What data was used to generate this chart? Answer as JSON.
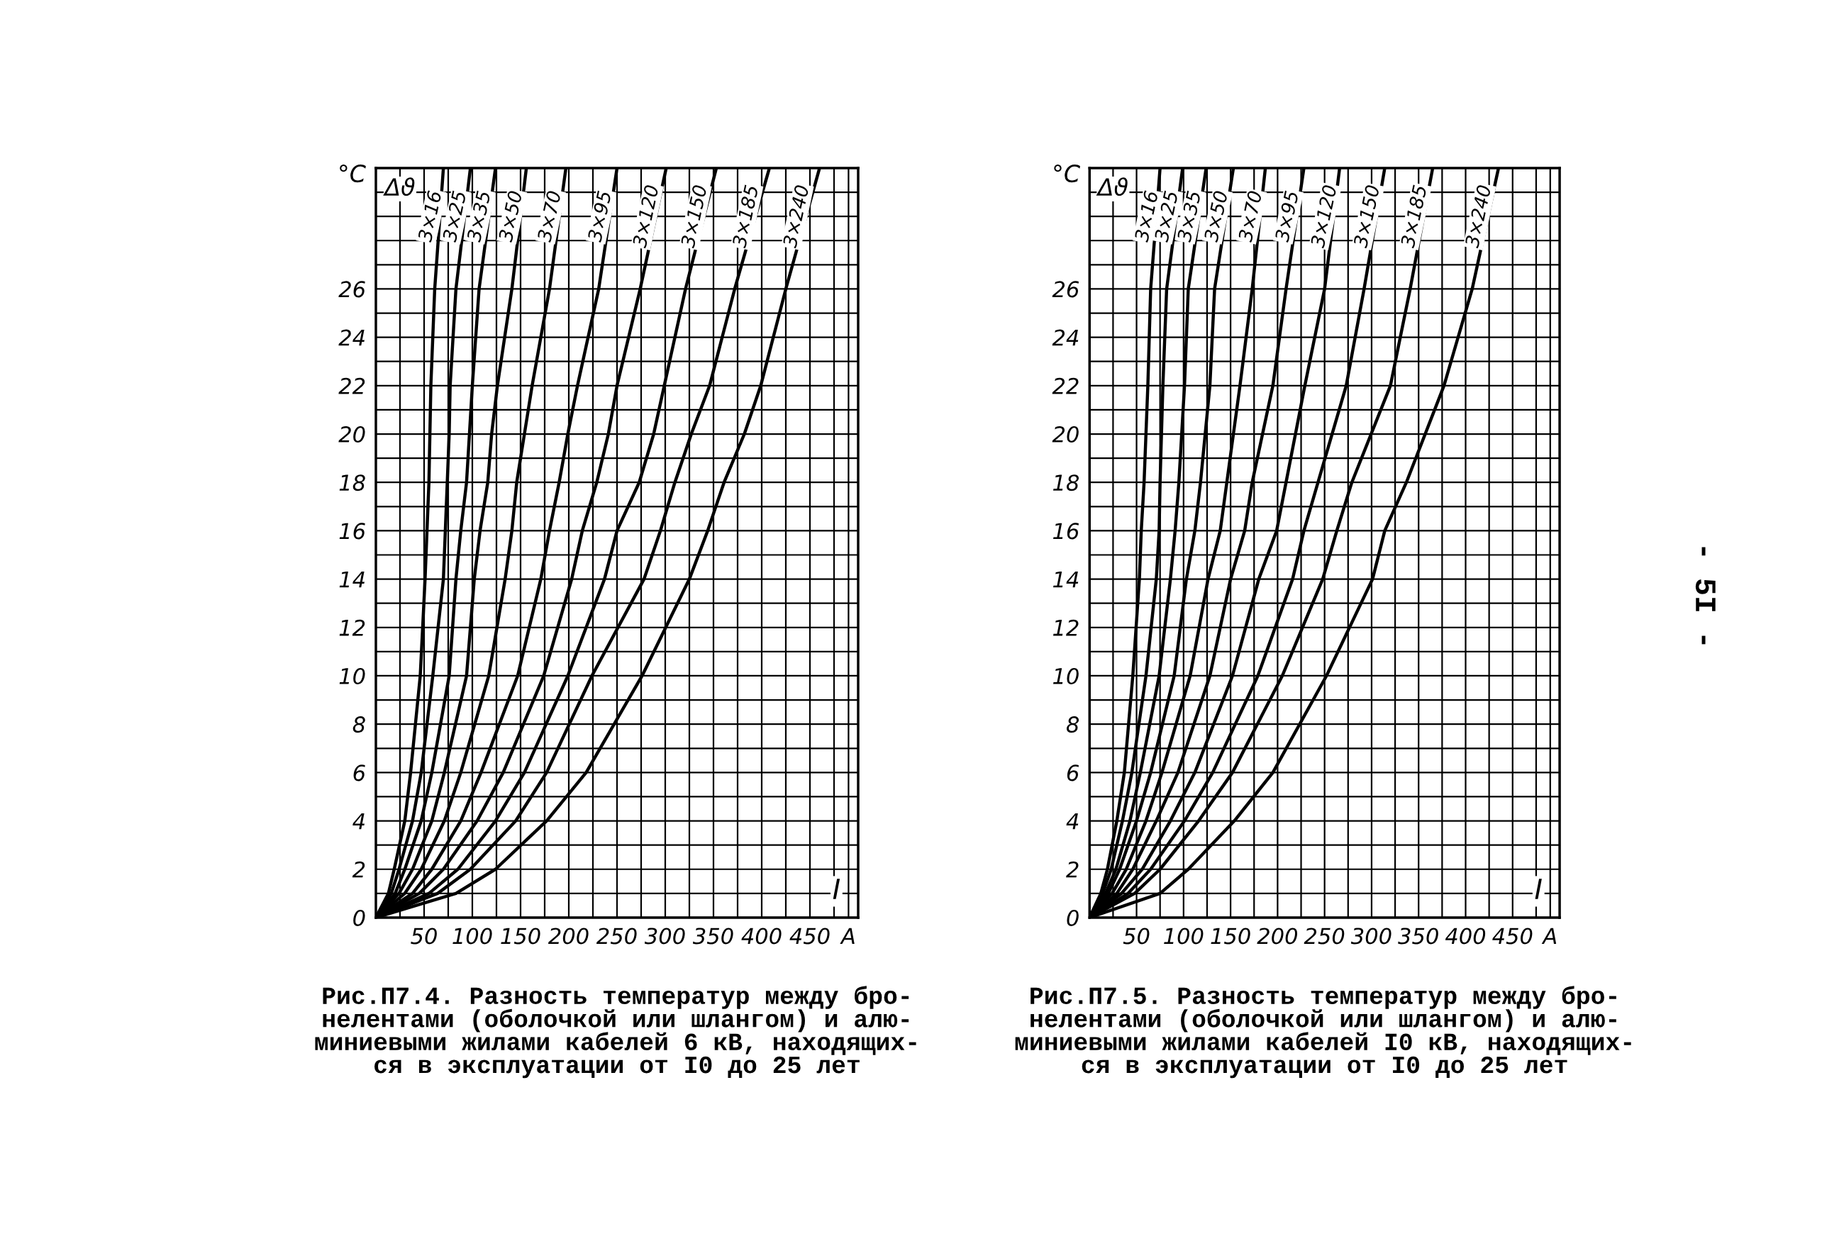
{
  "chart_data": [
    {
      "type": "line",
      "title": "Рис.П7.4. Разность температур между бро-\nнелентами (оболочкой или шлангом) и алю-\nминиевыми жилами кабелей 6 кВ, находящих-\nся в эксплуатации от I0 до 25 лет",
      "xlabel": "I",
      "ylabel": "°C",
      "annotations": [
        "Δϑ"
      ],
      "xlim": [
        0,
        500
      ],
      "ylim": [
        0,
        31
      ],
      "xticks": [
        {
          "value": 25,
          "label": null
        },
        50,
        {
          "value": 75,
          "label": null
        },
        100,
        {
          "value": 125,
          "label": null
        },
        150,
        {
          "value": 175,
          "label": null
        },
        200,
        {
          "value": 225,
          "label": null
        },
        250,
        {
          "value": 275,
          "label": null
        },
        300,
        {
          "value": 325,
          "label": null
        },
        350,
        {
          "value": 375,
          "label": null
        },
        400,
        {
          "value": 425,
          "label": null
        },
        450,
        {
          "value": 475,
          "label": null
        },
        {
          "value": 490,
          "label": "A"
        }
      ],
      "yticks": [
        0,
        {
          "value": 1,
          "label": null
        },
        2,
        {
          "value": 3,
          "label": null
        },
        4,
        {
          "value": 5,
          "label": null
        },
        6,
        {
          "value": 7,
          "label": null
        },
        8,
        {
          "value": 9,
          "label": null
        },
        10,
        {
          "value": 11,
          "label": null
        },
        12,
        {
          "value": 13,
          "label": null
        },
        14,
        {
          "value": 15,
          "label": null
        },
        16,
        {
          "value": 17,
          "label": null
        },
        18,
        {
          "value": 19,
          "label": null
        },
        20,
        {
          "value": 21,
          "label": null
        },
        22,
        {
          "value": 23,
          "label": null
        },
        24,
        {
          "value": 25,
          "label": null
        },
        26,
        {
          "value": 27,
          "label": null
        },
        {
          "value": 28,
          "label": null
        },
        {
          "value": 29,
          "label": null
        },
        {
          "value": 30,
          "label": null
        }
      ],
      "grid": true,
      "series": [
        {
          "name": "3×16",
          "color": "#000000",
          "x": [
            0,
            13,
            19,
            30,
            36,
            46,
            51,
            53,
            55,
            56,
            57,
            61,
            70
          ],
          "values": [
            0,
            1,
            2,
            4,
            6,
            10,
            14,
            16,
            18,
            20,
            22,
            26,
            31
          ]
        },
        {
          "name": "3×25",
          "color": "#000000",
          "x": [
            0,
            16,
            24,
            38,
            47,
            59,
            70,
            72,
            74,
            76,
            77,
            83,
            98
          ],
          "values": [
            0,
            1,
            2,
            4,
            6,
            10,
            14,
            16,
            18,
            20,
            22,
            26,
            31
          ]
        },
        {
          "name": "3×35",
          "color": "#000000",
          "x": [
            0,
            20,
            30,
            47,
            58,
            76,
            83,
            88,
            94,
            97,
            100,
            107,
            124
          ],
          "values": [
            0,
            1,
            2,
            4,
            6,
            10,
            14,
            16,
            18,
            20,
            22,
            26,
            31
          ]
        },
        {
          "name": "3×50",
          "color": "#000000",
          "x": [
            0,
            24,
            38,
            58,
            71,
            94,
            102,
            108,
            116,
            120,
            126,
            141,
            156
          ],
          "values": [
            0,
            1,
            2,
            4,
            6,
            10,
            14,
            16,
            18,
            20,
            22,
            26,
            31
          ]
        },
        {
          "name": "3×70",
          "color": "#000000",
          "x": [
            0,
            30,
            47,
            71,
            88,
            117,
            134,
            141,
            146,
            154,
            162,
            180,
            197
          ],
          "values": [
            0,
            1,
            2,
            4,
            6,
            10,
            14,
            16,
            18,
            20,
            22,
            26,
            31
          ]
        },
        {
          "name": "3×95",
          "color": "#000000",
          "x": [
            0,
            38,
            58,
            88,
            109,
            147,
            171,
            180,
            190,
            199,
            209,
            231,
            250
          ],
          "values": [
            0,
            1,
            2,
            4,
            6,
            10,
            14,
            16,
            18,
            20,
            22,
            26,
            31
          ]
        },
        {
          "name": "3×120",
          "color": "#000000",
          "x": [
            0,
            45,
            70,
            105,
            132,
            174,
            203,
            214,
            229,
            241,
            250,
            274,
            301
          ],
          "values": [
            0,
            1,
            2,
            4,
            6,
            10,
            14,
            16,
            18,
            20,
            22,
            26,
            31
          ]
        },
        {
          "name": "3×150",
          "color": "#000000",
          "x": [
            0,
            55,
            85,
            124,
            154,
            199,
            237,
            250,
            273,
            288,
            299,
            321,
            353
          ],
          "values": [
            0,
            1,
            2,
            4,
            6,
            10,
            14,
            16,
            18,
            20,
            22,
            26,
            31
          ]
        },
        {
          "name": "3×185",
          "color": "#000000",
          "x": [
            0,
            64,
            98,
            145,
            177,
            224,
            278,
            295,
            310,
            327,
            346,
            372,
            408
          ],
          "values": [
            0,
            1,
            2,
            4,
            6,
            10,
            14,
            16,
            18,
            20,
            22,
            26,
            31
          ]
        },
        {
          "name": "3×240",
          "color": "#000000",
          "x": [
            0,
            83,
            124,
            177,
            218,
            276,
            325,
            344,
            361,
            382,
            399,
            425,
            460
          ],
          "values": [
            0,
            1,
            2,
            4,
            6,
            10,
            14,
            16,
            18,
            20,
            22,
            26,
            31
          ]
        }
      ]
    },
    {
      "type": "line",
      "title": "Рис.П7.5. Разность температур между бро-\nнелентами (оболочкой или шлангом) и алю-\nминиевыми жилами кабелей I0 кВ, находящих-\nся в эксплуатации от I0 до 25 лет",
      "xlabel": "I",
      "ylabel": "°C",
      "annotations": [
        "Δϑ",
        "- 5I -"
      ],
      "xlim": [
        0,
        500
      ],
      "ylim": [
        0,
        31
      ],
      "xticks": [
        {
          "value": 25,
          "label": null
        },
        50,
        {
          "value": 75,
          "label": null
        },
        100,
        {
          "value": 125,
          "label": null
        },
        150,
        {
          "value": 175,
          "label": null
        },
        200,
        {
          "value": 225,
          "label": null
        },
        250,
        {
          "value": 275,
          "label": null
        },
        300,
        {
          "value": 325,
          "label": null
        },
        350,
        {
          "value": 375,
          "label": null
        },
        400,
        {
          "value": 425,
          "label": null
        },
        450,
        {
          "value": 475,
          "label": null
        },
        {
          "value": 490,
          "label": "A"
        }
      ],
      "yticks": [
        0,
        {
          "value": 1,
          "label": null
        },
        2,
        {
          "value": 3,
          "label": null
        },
        4,
        {
          "value": 5,
          "label": null
        },
        6,
        {
          "value": 7,
          "label": null
        },
        8,
        {
          "value": 9,
          "label": null
        },
        10,
        {
          "value": 11,
          "label": null
        },
        12,
        {
          "value": 13,
          "label": null
        },
        14,
        {
          "value": 15,
          "label": null
        },
        16,
        {
          "value": 17,
          "label": null
        },
        18,
        {
          "value": 19,
          "label": null
        },
        20,
        {
          "value": 21,
          "label": null
        },
        22,
        {
          "value": 23,
          "label": null
        },
        24,
        {
          "value": 25,
          "label": null
        },
        26,
        {
          "value": 27,
          "label": null
        },
        {
          "value": 28,
          "label": null
        },
        {
          "value": 29,
          "label": null
        },
        {
          "value": 30,
          "label": null
        }
      ],
      "grid": true,
      "series": [
        {
          "name": "3×16",
          "color": "#000000",
          "x": [
            0,
            12,
            19,
            29,
            37,
            46,
            53,
            55,
            58,
            62,
            65,
            75
          ],
          "values": [
            0,
            1,
            2,
            4,
            6,
            10,
            14,
            16,
            18,
            22,
            26,
            31
          ]
        },
        {
          "name": "3×25",
          "color": "#000000",
          "x": [
            0,
            14,
            23,
            35,
            45,
            60,
            71,
            74,
            75,
            78,
            82,
            99
          ],
          "values": [
            0,
            1,
            2,
            4,
            6,
            10,
            14,
            16,
            18,
            22,
            26,
            31
          ]
        },
        {
          "name": "3×35",
          "color": "#000000",
          "x": [
            0,
            17,
            28,
            43,
            54,
            74,
            86,
            91,
            95,
            101,
            105,
            124
          ],
          "values": [
            0,
            1,
            2,
            4,
            6,
            10,
            14,
            16,
            18,
            22,
            26,
            31
          ]
        },
        {
          "name": "3×50",
          "color": "#000000",
          "x": [
            0,
            20,
            32,
            50,
            65,
            90,
            103,
            112,
            118,
            128,
            133,
            153
          ],
          "values": [
            0,
            1,
            2,
            4,
            6,
            10,
            14,
            16,
            18,
            22,
            26,
            31
          ]
        },
        {
          "name": "3×70",
          "color": "#000000",
          "x": [
            0,
            24,
            39,
            60,
            77,
            107,
            126,
            139,
            146,
            160,
            173,
            187
          ],
          "values": [
            0,
            1,
            2,
            4,
            6,
            10,
            14,
            16,
            18,
            22,
            26,
            31
          ]
        },
        {
          "name": "3×95",
          "color": "#000000",
          "x": [
            0,
            29,
            46,
            71,
            94,
            128,
            150,
            165,
            173,
            195,
            209,
            228
          ],
          "values": [
            0,
            1,
            2,
            4,
            6,
            10,
            14,
            16,
            18,
            22,
            26,
            31
          ]
        },
        {
          "name": "3×120",
          "color": "#000000",
          "x": [
            0,
            34,
            56,
            86,
            112,
            152,
            180,
            199,
            209,
            229,
            250,
            266
          ],
          "values": [
            0,
            1,
            2,
            4,
            6,
            10,
            14,
            16,
            18,
            22,
            26,
            31
          ]
        },
        {
          "name": "3×150",
          "color": "#000000",
          "x": [
            0,
            41,
            65,
            101,
            131,
            179,
            216,
            228,
            243,
            273,
            292,
            314
          ],
          "values": [
            0,
            1,
            2,
            4,
            6,
            10,
            14,
            16,
            18,
            22,
            26,
            31
          ]
        },
        {
          "name": "3×185",
          "color": "#000000",
          "x": [
            0,
            48,
            75,
            116,
            152,
            205,
            248,
            263,
            279,
            320,
            341,
            365
          ],
          "values": [
            0,
            1,
            2,
            4,
            6,
            10,
            14,
            16,
            18,
            22,
            26,
            31
          ]
        },
        {
          "name": "3×240",
          "color": "#000000",
          "x": [
            0,
            75,
            105,
            154,
            195,
            252,
            301,
            314,
            337,
            377,
            407,
            435
          ],
          "values": [
            0,
            1,
            2,
            4,
            6,
            10,
            14,
            16,
            18,
            22,
            26,
            31
          ]
        }
      ]
    }
  ]
}
